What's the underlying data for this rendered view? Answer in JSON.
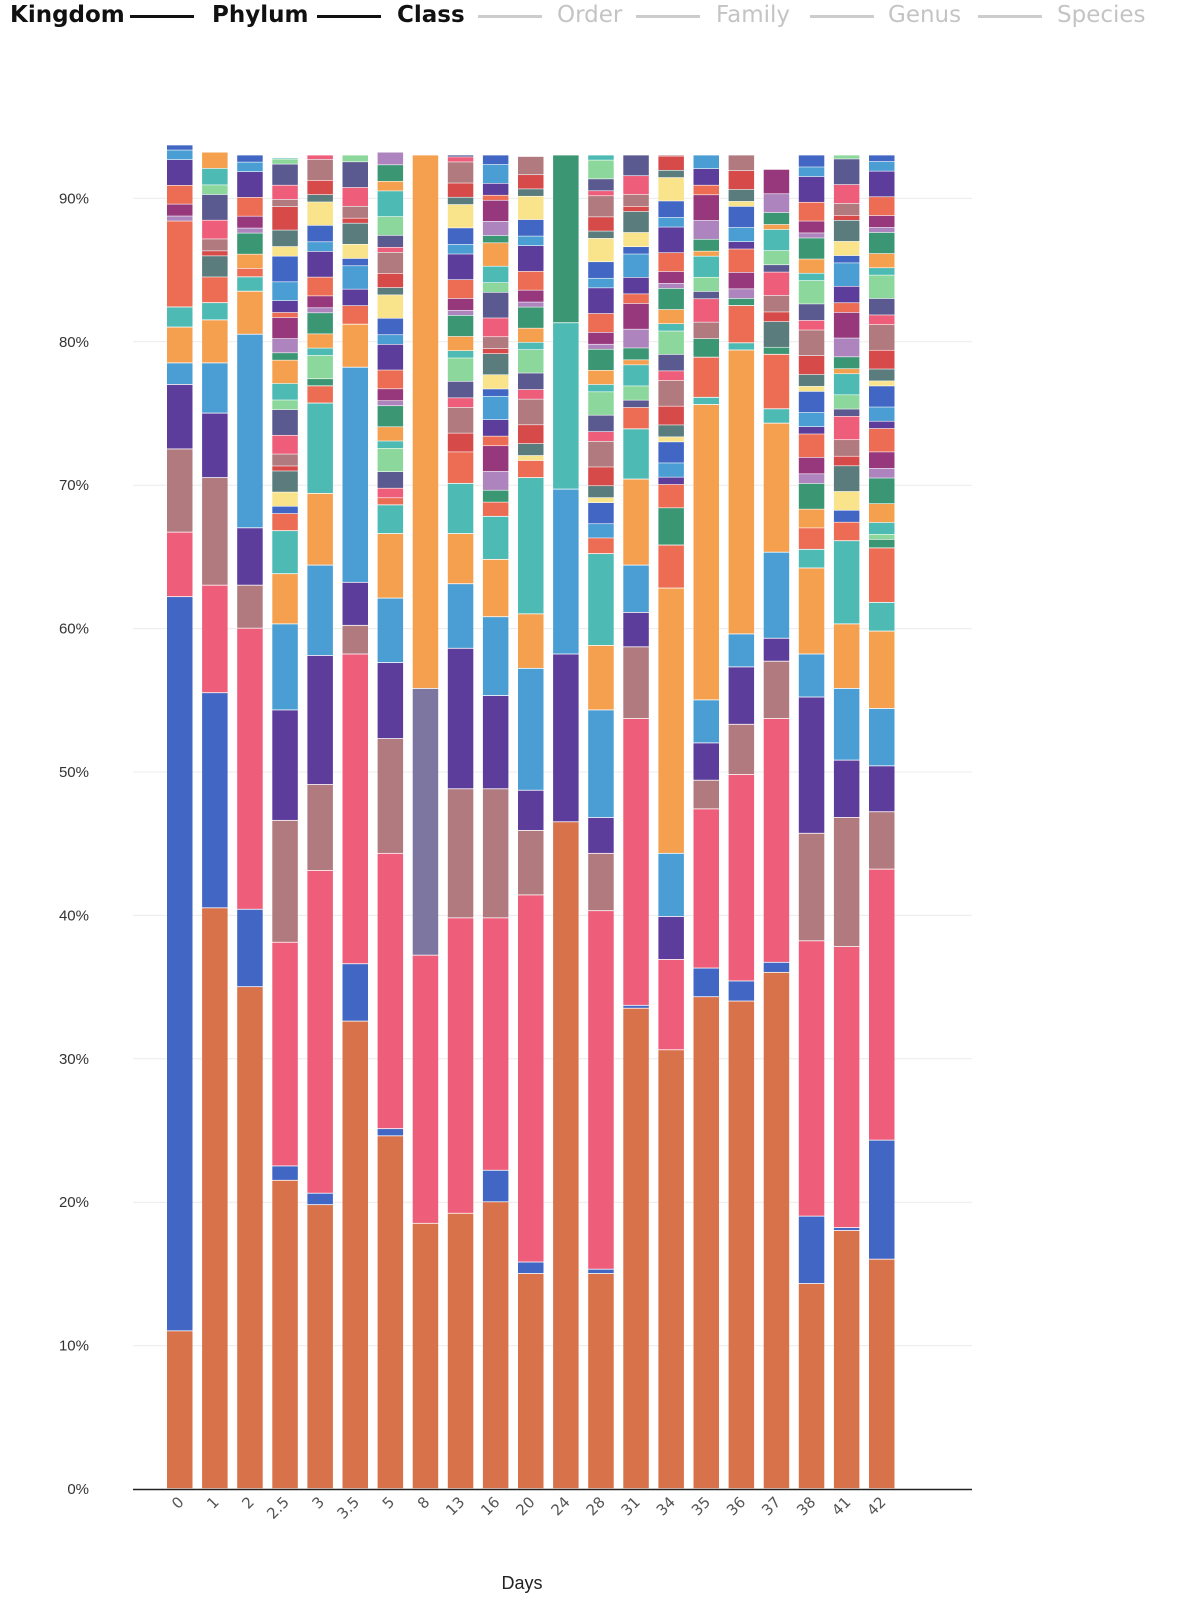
{
  "taxonomy_levels": [
    {
      "label": "Kingdom",
      "active": true
    },
    {
      "label": "Phylum",
      "active": true
    },
    {
      "label": "Class",
      "active": true
    },
    {
      "label": "Order",
      "active": false
    },
    {
      "label": "Family",
      "active": false
    },
    {
      "label": "Genus",
      "active": false
    },
    {
      "label": "Species",
      "active": false
    }
  ],
  "colors": {
    "orange_brown": "#d8724a",
    "pink": "#ee5e7b",
    "blue": "#4266c4",
    "red": "#d64a4a",
    "mauve": "#b07a7f",
    "purple": "#5c3d9c",
    "light_blue": "#4b9ed3",
    "orange": "#f4a04f",
    "teal": "#4dbab3",
    "green": "#3a9673",
    "slate": "#7c76a0",
    "lilac": "#ad84bd",
    "yellow": "#f9e38b",
    "magenta": "#96387b",
    "navy": "#5a5990",
    "mint": "#8cd89c",
    "salmon": "#ec6d53",
    "gray_teal": "#5a7c7c"
  },
  "chart_data": {
    "type": "bar",
    "stacked": true,
    "xlabel": "Days",
    "ylabel": "",
    "ylim": [
      0,
      93
    ],
    "yticks": [
      "0%",
      "10%",
      "20%",
      "30%",
      "40%",
      "50%",
      "60%",
      "70%",
      "80%",
      "90%"
    ],
    "grid": true,
    "categories": [
      "0",
      "1",
      "2",
      "2.5",
      "3",
      "3.5",
      "5",
      "8",
      "13",
      "16",
      "20",
      "24",
      "28",
      "31",
      "34",
      "35",
      "36",
      "37",
      "38",
      "41",
      "42"
    ],
    "series": [
      {
        "color": "orange_brown",
        "values": [
          11,
          40.5,
          35,
          21.5,
          19.8,
          32.6,
          24.6,
          18.5,
          19.2,
          20,
          15,
          46.5,
          15,
          33.5,
          30.6,
          34.3,
          34,
          36,
          14.3,
          18,
          16
        ]
      },
      {
        "color": "blue",
        "values": [
          51.2,
          15,
          5.4,
          1,
          0.8,
          4,
          0.5,
          0,
          0,
          2.2,
          0.8,
          0,
          0.3,
          0.2,
          0,
          2,
          1.4,
          0.7,
          4.7,
          0.2,
          8.3
        ]
      },
      {
        "color": "pink",
        "values": [
          4.5,
          7.5,
          19.6,
          15.6,
          22.5,
          21.6,
          19.2,
          18.7,
          20.6,
          17.6,
          25.6,
          0,
          25,
          20,
          6.3,
          11.1,
          14.4,
          17,
          19.2,
          19.6,
          18.9
        ]
      },
      {
        "color": "slate",
        "values": [
          0,
          0,
          0,
          0,
          0,
          0,
          0,
          18.6,
          0,
          0,
          0,
          0,
          0,
          0,
          0,
          0,
          0,
          0,
          0,
          0,
          0
        ]
      },
      {
        "color": "mauve",
        "values": [
          5.8,
          7.5,
          3,
          8.5,
          6,
          2,
          8,
          0,
          9,
          9,
          4.5,
          0,
          4,
          5,
          0,
          2,
          3.5,
          4,
          7.5,
          9,
          4
        ]
      },
      {
        "color": "purple",
        "values": [
          4.5,
          4.5,
          4,
          7.7,
          9,
          3,
          5.3,
          0,
          9.8,
          6.5,
          2.8,
          11.7,
          2.5,
          2.4,
          3,
          2.6,
          4,
          1.6,
          9.5,
          4,
          3.2
        ]
      },
      {
        "color": "light_blue",
        "values": [
          1.5,
          3.5,
          13.5,
          6,
          6.3,
          15,
          4.5,
          0,
          4.5,
          5.5,
          8.5,
          11.5,
          7.5,
          3.3,
          4.4,
          3,
          2.3,
          6,
          3,
          5,
          4
        ]
      },
      {
        "color": "orange",
        "values": [
          2.5,
          3,
          3,
          3.5,
          5,
          3,
          4.5,
          37.2,
          3.5,
          4,
          3.8,
          0,
          4.5,
          6,
          18.5,
          20.6,
          19.8,
          9,
          6,
          4.5,
          5.4
        ]
      },
      {
        "color": "teal",
        "values": [
          1.4,
          1.2,
          1,
          3,
          6.3,
          0,
          2,
          0,
          3.5,
          3,
          9.5,
          11.6,
          6.4,
          3.5,
          0,
          0.5,
          0.5,
          1,
          1.3,
          5.8,
          2
        ]
      },
      {
        "color": "salmon",
        "values": [
          6,
          1.8,
          0.6,
          1.2,
          1.2,
          1.3,
          0.5,
          0,
          2.2,
          1,
          1.2,
          0,
          1.1,
          1.5,
          3,
          2.8,
          2.6,
          3.8,
          1.5,
          1.3,
          3.8
        ]
      },
      {
        "color": "green",
        "values": [
          0,
          0,
          0,
          0,
          0.5,
          0,
          0,
          0,
          0,
          0,
          0,
          11.7,
          0,
          0,
          2.6,
          1.3,
          0.5,
          0.5,
          0,
          0,
          0.6
        ]
      },
      {
        "color": "other",
        "values": [
          5.3,
          8.7,
          7.9,
          24.8,
          15.6,
          10.5,
          24.1,
          0,
          20.7,
          24.2,
          21.2,
          0,
          26.7,
          17.6,
          24.6,
          12.8,
          10,
          12.4,
          26,
          25.6,
          26.8
        ]
      }
    ]
  }
}
